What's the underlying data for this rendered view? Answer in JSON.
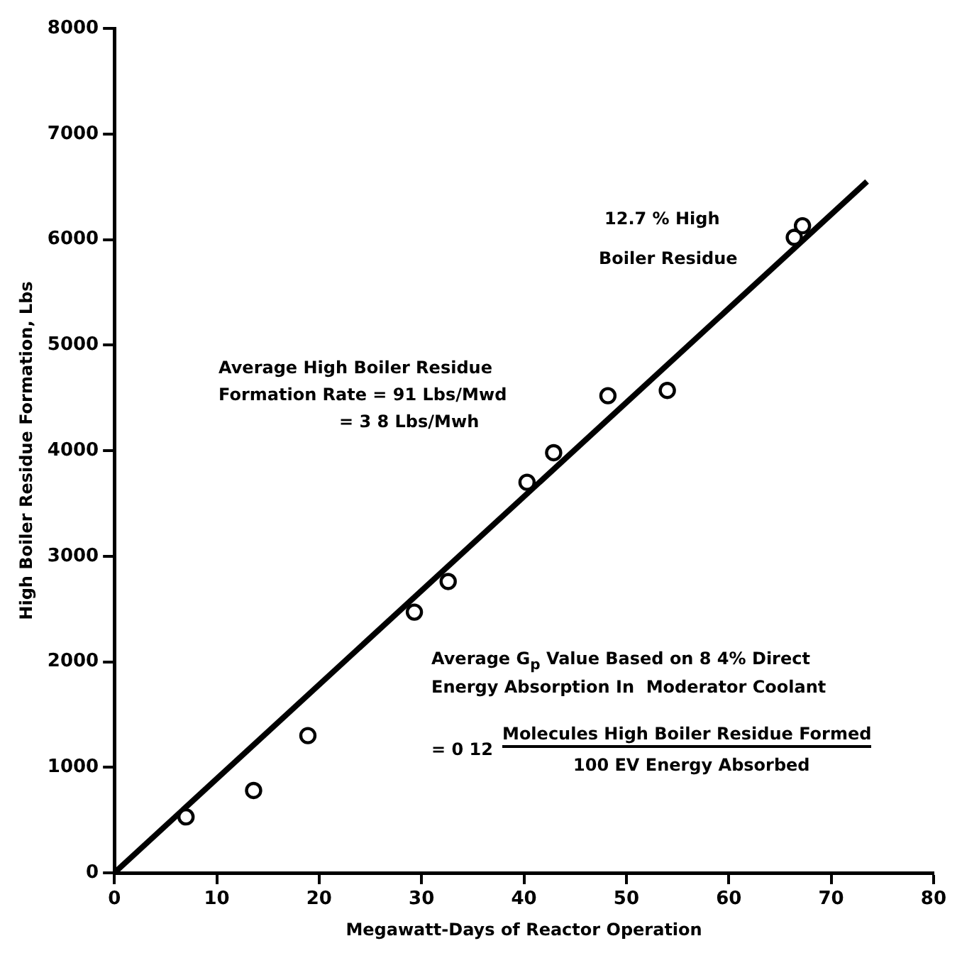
{
  "chart_data": {
    "type": "scatter",
    "xlabel": "Megawatt-Days of Reactor Operation",
    "ylabel": "High Boiler Residue Formation, Lbs",
    "x": [
      7.0,
      13.6,
      18.9,
      29.3,
      32.6,
      40.3,
      42.9,
      48.2,
      54.0,
      66.4,
      67.2
    ],
    "series": [
      {
        "color": "#000000",
        "marker": "circle",
        "values": [
          530,
          780,
          1300,
          2470,
          2760,
          3700,
          3980,
          4520,
          4570,
          6020,
          6130
        ]
      },
      {
        "type": "line",
        "color": "#000000",
        "marker": "none",
        "x": [
          0,
          73.5
        ],
        "values": [
          0,
          6550
        ]
      }
    ],
    "xlim": [
      0,
      80
    ],
    "xticks": [
      0,
      10,
      20,
      30,
      40,
      50,
      60,
      70,
      80
    ],
    "ylim": [
      0,
      8000
    ],
    "yticks": [
      0,
      1000,
      2000,
      3000,
      4000,
      5000,
      6000,
      7000,
      8000
    ],
    "grid": false,
    "legend": false,
    "line_style": "solid",
    "annotations": [
      "12.7 % High",
      "Boiler Residue",
      "Average High Boiler Residue",
      "Formation Rate = 91 Lbs/Mwd",
      "= 3 8 Lbs/Mwh",
      "Average G$_{p}$ Value Based on 8 4% Direct",
      "Energy Absorption In  Moderator Coolant",
      "= 0 12",
      "Molecules High Boiler Residue Formed",
      "100 EV Energy Absorbed"
    ]
  }
}
